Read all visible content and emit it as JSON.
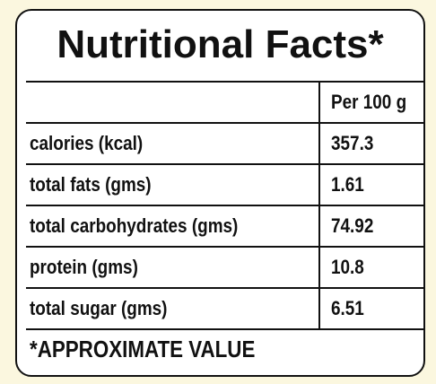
{
  "title": "Nutritional Facts*",
  "header": {
    "label": "",
    "value": "Per 100 g"
  },
  "rows": [
    {
      "label": "calories (kcal)",
      "value": "357.3"
    },
    {
      "label": "total fats (gms)",
      "value": "1.61"
    },
    {
      "label": "total carbohydrates (gms)",
      "value": "74.92"
    },
    {
      "label": "protein (gms)",
      "value": "10.8"
    },
    {
      "label": "total sugar (gms)",
      "value": "6.51"
    }
  ],
  "footnote": "*APPROXIMATE VALUE",
  "colors": {
    "page_background": "#fbf7df",
    "card_background": "#ffffff",
    "ink": "#111111"
  }
}
